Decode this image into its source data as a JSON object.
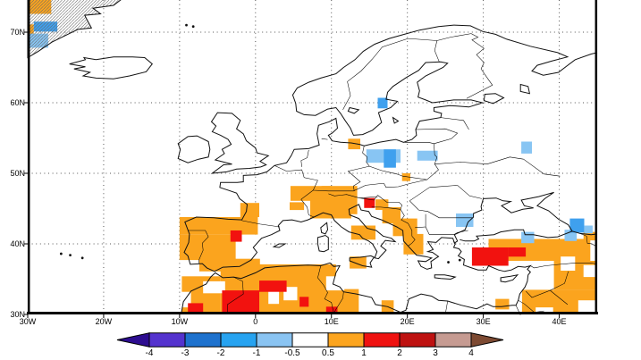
{
  "figure": {
    "background": "#FFFFFF",
    "grid_color": "#555555",
    "coast_color": "#111111",
    "border_color": "#000000"
  },
  "map": {
    "x_ticks": [
      {
        "label": "30W",
        "lon": -30
      },
      {
        "label": "20W",
        "lon": -20
      },
      {
        "label": "10W",
        "lon": -10
      },
      {
        "label": "0",
        "lon": 0
      },
      {
        "label": "10E",
        "lon": 10
      },
      {
        "label": "20E",
        "lon": 20
      },
      {
        "label": "30E",
        "lon": 30
      },
      {
        "label": "40E",
        "lon": 40
      }
    ],
    "y_ticks": [
      {
        "label": "70N",
        "lat": 70
      },
      {
        "label": "60N",
        "lat": 60
      },
      {
        "label": "50N",
        "lat": 50
      },
      {
        "label": "40N",
        "lat": 40
      },
      {
        "label": "30N",
        "lat": 30
      }
    ]
  },
  "legend": {
    "labels": [
      "-4",
      "-3",
      "-2",
      "-1",
      "-0.5",
      "0.5",
      "1",
      "2",
      "3",
      "4"
    ],
    "segment_colors": [
      "#5433CE",
      "#1E72CE",
      "#27A3F0",
      "#8AC4F2",
      "#FFFFFF",
      "#FCA51F",
      "#EF1210",
      "#BE1211",
      "#C69B92"
    ],
    "left_arrow_color": "#2D0D90",
    "right_arrow_color": "#7D4A32",
    "outline_color": "#000000"
  },
  "chart_data": {
    "type": "heatmap",
    "title": "",
    "projection": "equirectangular",
    "lon_range": [
      -30,
      45
    ],
    "lat_range": [
      30,
      74.56
    ],
    "grid_step_deg": 10,
    "bins": {
      "p1": {
        "label": "0.5 to 1",
        "color": "#FBA41E"
      },
      "p2": {
        "label": "1 to 2",
        "color": "#F2120F"
      },
      "z": {
        "label": "-0.5 to 0.5",
        "color": "#FFFFFF"
      },
      "m1": {
        "label": "-1 to -0.5",
        "color": "#88C5F3"
      },
      "m2": {
        "label": "-2 to -1",
        "color": "#3FA0EE"
      }
    },
    "cells": [
      [
        -30,
        75,
        3.1,
        2.4,
        "p1"
      ],
      [
        -30,
        71.1,
        0.8,
        1.4,
        "p1"
      ],
      [
        12.2,
        54.9,
        1.6,
        1.5,
        "p1"
      ],
      [
        19.3,
        50,
        1.1,
        1.1,
        "p1"
      ],
      [
        -2,
        45.8,
        2.5,
        2,
        "p1"
      ],
      [
        4.6,
        48.2,
        5.4,
        2.1,
        "p1"
      ],
      [
        4.5,
        45.9,
        1.9,
        1.1,
        "p1"
      ],
      [
        8.7,
        48.2,
        4.7,
        4,
        "p1"
      ],
      [
        7.2,
        46.4,
        5.4,
        2.8,
        "p1"
      ],
      [
        15.8,
        46.3,
        1.7,
        1.5,
        "p1"
      ],
      [
        16.7,
        45.2,
        2.4,
        2.3,
        "p1"
      ],
      [
        18.1,
        43.6,
        3.2,
        2.5,
        "p1"
      ],
      [
        19.5,
        41.4,
        2.6,
        2.9,
        "p1"
      ],
      [
        12.6,
        42.6,
        3.2,
        2,
        "p1"
      ],
      [
        12.4,
        38.2,
        2.2,
        1.7,
        "p1"
      ],
      [
        30.7,
        40.7,
        13.4,
        3.1,
        "p1"
      ],
      [
        43.2,
        41.7,
        1.8,
        1.2,
        "p1"
      ],
      [
        39.3,
        37.6,
        5.7,
        4.1,
        "p1"
      ],
      [
        35.1,
        33.5,
        9.9,
        3.5,
        "p1"
      ],
      [
        31.6,
        32.2,
        1.8,
        1.5,
        "p1"
      ],
      [
        16.6,
        32,
        1.6,
        2,
        "p1"
      ],
      [
        10.5,
        33.6,
        3.1,
        3.6,
        "p1"
      ],
      [
        -9.7,
        35.4,
        5.1,
        5.4,
        "p1"
      ],
      [
        -4.6,
        36.2,
        5.2,
        6.2,
        "p1"
      ],
      [
        0.5,
        37.1,
        10.1,
        7.1,
        "p1"
      ],
      [
        -10,
        43.8,
        10.3,
        2.5,
        "p1"
      ],
      [
        -10,
        41.3,
        7.4,
        3.6,
        "p1"
      ],
      [
        -7.4,
        37.9,
        8,
        1.8,
        "p1"
      ],
      [
        40.2,
        38.2,
        1.9,
        2,
        "z"
      ],
      [
        43.2,
        37,
        1.8,
        1.7,
        "z"
      ],
      [
        36.9,
        36.4,
        1.1,
        2.6,
        "z"
      ],
      [
        36.9,
        31,
        2.3,
        1,
        "z"
      ],
      [
        42.5,
        32,
        2.8,
        2,
        "z"
      ],
      [
        -6.9,
        34.7,
        2.9,
        1.7,
        "z"
      ],
      [
        -9.9,
        33.2,
        1.4,
        2.2,
        "z"
      ],
      [
        1.7,
        33.7,
        1.4,
        2.2,
        "z"
      ],
      [
        3.7,
        33.9,
        1.8,
        1.9,
        "z"
      ],
      [
        9.3,
        35.4,
        2.4,
        2,
        "z"
      ],
      [
        -2.6,
        41.3,
        3.8,
        3.4,
        "z"
      ],
      [
        14.3,
        46.5,
        1.4,
        1.4,
        "p2"
      ],
      [
        28.5,
        39.5,
        4.8,
        2.6,
        "p2"
      ],
      [
        33.3,
        39.5,
        2.3,
        1.3,
        "p2"
      ],
      [
        -8.9,
        31.6,
        2,
        1.4,
        "p2"
      ],
      [
        -4.4,
        33.4,
        4.9,
        3.4,
        "p2"
      ],
      [
        0.5,
        34.8,
        3.6,
        1.6,
        "p2"
      ],
      [
        5.8,
        32.5,
        1.2,
        1.4,
        "p2"
      ],
      [
        9.3,
        31.1,
        1.5,
        1.6,
        "p2"
      ],
      [
        -3.3,
        41.9,
        1.5,
        1.6,
        "p2"
      ],
      [
        -30,
        69.8,
        2.7,
        2,
        "m1"
      ],
      [
        14.6,
        53.4,
        4.5,
        1.9,
        "m1"
      ],
      [
        21.3,
        53.2,
        2.7,
        1.4,
        "m1"
      ],
      [
        35,
        54.5,
        1.4,
        1.7,
        "m1"
      ],
      [
        26.4,
        44.3,
        2.3,
        1.9,
        "m1"
      ],
      [
        35,
        41.7,
        1.7,
        1.6,
        "m1"
      ],
      [
        40.7,
        42,
        1.6,
        1.6,
        "m1"
      ],
      [
        43.3,
        42.6,
        1.1,
        1.1,
        "m1"
      ],
      [
        -29.2,
        71.5,
        3.1,
        1.4,
        "m2"
      ],
      [
        16.1,
        60.7,
        1.3,
        1.5,
        "m2"
      ],
      [
        16.9,
        53.4,
        1.6,
        2.6,
        "m2"
      ],
      [
        41.4,
        43.6,
        1.9,
        2,
        "m2"
      ]
    ]
  }
}
